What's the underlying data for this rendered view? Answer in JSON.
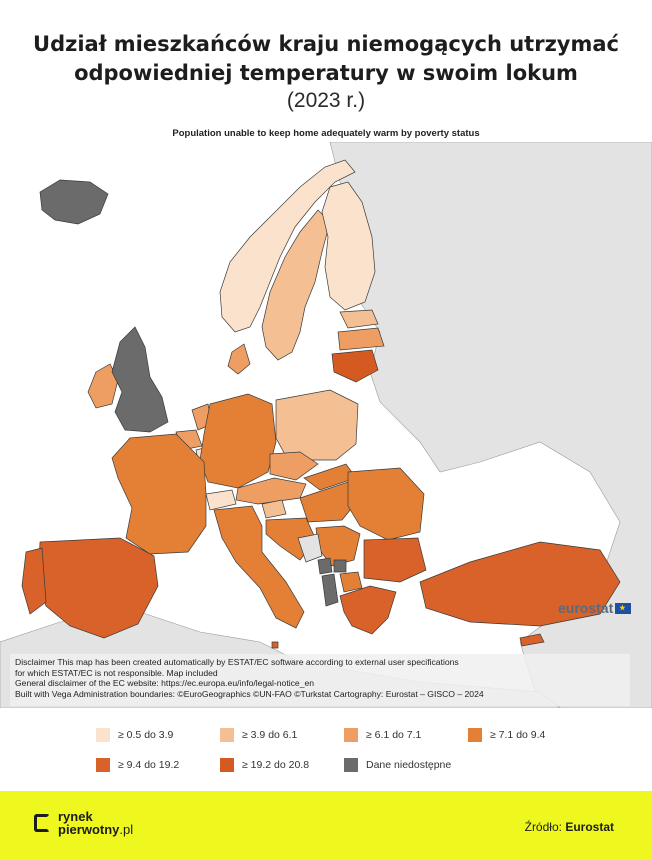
{
  "title": {
    "line1": "Udział mieszkańców kraju niemogących utrzymać",
    "line2": "odpowiedniej temperatury w swoim lokum",
    "year": "(2023 r.)"
  },
  "map": {
    "subtitle": "Population unable to keep home adequately warm by poverty status",
    "logo_text": "eurostat",
    "disclaimer": [
      "Disclaimer This map has been created automatically by ESTAT/EC software according to external user specifications",
      "for which ESTAT/EC is not responsible. Map included",
      "General disclaimer of the EC website: https://ec.europa.eu/info/legal-notice_en",
      "Built with Vega Administration boundaries: ©EuroGeographics ©UN-FAO ©Turkstat Cartography: Eurostat – GISCO – 2024"
    ],
    "colors": {
      "c1": "#fbe2cc",
      "c2": "#f4bf93",
      "c3": "#ee9e62",
      "c4": "#e48035",
      "c5": "#d8622a",
      "c6": "#d45a22",
      "na": "#6b6b6b",
      "non_eu": "#e3e3e3",
      "sea": "#ffffff"
    },
    "countries": [
      {
        "code": "IS",
        "class": "na"
      },
      {
        "code": "NO",
        "class": "c1"
      },
      {
        "code": "SE",
        "class": "c2"
      },
      {
        "code": "FI",
        "class": "c1"
      },
      {
        "code": "EE",
        "class": "c2"
      },
      {
        "code": "LV",
        "class": "c3"
      },
      {
        "code": "LT",
        "class": "c6"
      },
      {
        "code": "DK",
        "class": "c3"
      },
      {
        "code": "IE",
        "class": "c3"
      },
      {
        "code": "UK",
        "class": "na"
      },
      {
        "code": "NL",
        "class": "c3"
      },
      {
        "code": "BE",
        "class": "c3"
      },
      {
        "code": "LU",
        "class": "c1"
      },
      {
        "code": "DE",
        "class": "c4"
      },
      {
        "code": "PL",
        "class": "c2"
      },
      {
        "code": "CZ",
        "class": "c3"
      },
      {
        "code": "SK",
        "class": "c4"
      },
      {
        "code": "AT",
        "class": "c3"
      },
      {
        "code": "CH",
        "class": "c1"
      },
      {
        "code": "FR",
        "class": "c4"
      },
      {
        "code": "HU",
        "class": "c4"
      },
      {
        "code": "SI",
        "class": "c2"
      },
      {
        "code": "HR",
        "class": "c4"
      },
      {
        "code": "RO",
        "class": "c4"
      },
      {
        "code": "RS",
        "class": "c4"
      },
      {
        "code": "BA",
        "class": "non_eu"
      },
      {
        "code": "ME",
        "class": "na"
      },
      {
        "code": "XK",
        "class": "na"
      },
      {
        "code": "AL",
        "class": "na"
      },
      {
        "code": "MK",
        "class": "c4"
      },
      {
        "code": "BG",
        "class": "c5"
      },
      {
        "code": "GR",
        "class": "c5"
      },
      {
        "code": "IT",
        "class": "c4"
      },
      {
        "code": "ES",
        "class": "c5"
      },
      {
        "code": "PT",
        "class": "c5"
      },
      {
        "code": "TR",
        "class": "c5"
      },
      {
        "code": "CY",
        "class": "c5"
      },
      {
        "code": "MT",
        "class": "c5"
      }
    ]
  },
  "legend": [
    {
      "label": "≥ 0.5 do 3.9",
      "color": "#fbe2cc"
    },
    {
      "label": "≥ 3.9 do 6.1",
      "color": "#f4bf93"
    },
    {
      "label": "≥ 6.1 do 7.1",
      "color": "#ee9e62"
    },
    {
      "label": "≥ 7.1 do 9.4",
      "color": "#e48035"
    },
    {
      "label": "≥ 9.4 do 19.2",
      "color": "#d8622a"
    },
    {
      "label": "≥ 19.2 do 20.8",
      "color": "#d45a22"
    },
    {
      "label": "Dane niedostępne",
      "color": "#6b6b6b"
    }
  ],
  "footer": {
    "brand_line1": "rynek",
    "brand_line2_bold": "pierwotny",
    "brand_line2_suffix": ".pl",
    "source_label": "Źródło:",
    "source_value": "Eurostat"
  }
}
